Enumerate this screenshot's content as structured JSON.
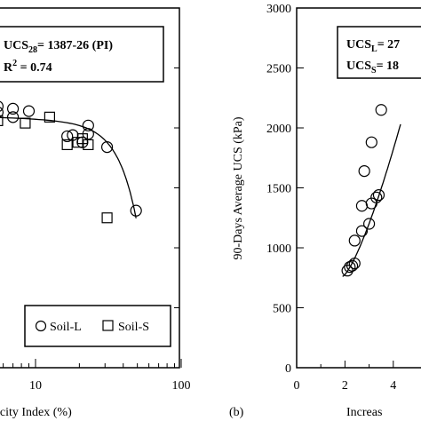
{
  "chart_data": [
    {
      "type": "scatter",
      "panel": "a",
      "x_scale": "log",
      "xlim": [
        1,
        100
      ],
      "ylim": [
        0,
        3000
      ],
      "x_ticks": [
        "10",
        "100"
      ],
      "xlabel": "icity Index (%)",
      "annotation": {
        "line1_prefix": "UCS",
        "line1_sub": "28",
        "line1_rest": "= 1387-26 (PI)",
        "line2_prefix": "R",
        "line2_sup": "2",
        "line2_rest": " = 0.74"
      },
      "legend": {
        "position": "bottom-right",
        "entries": [
          "Soil-L",
          "Soil-S"
        ]
      },
      "series": [
        {
          "name": "Soil-L",
          "marker": "circle",
          "points": [
            [
              5.5,
              2180
            ],
            [
              5.5,
              2130
            ],
            [
              7.0,
              2160
            ],
            [
              7.0,
              2090
            ],
            [
              9.0,
              2140
            ],
            [
              16.5,
              1930
            ],
            [
              18.0,
              1940
            ],
            [
              21.0,
              1880
            ],
            [
              23.0,
              2020
            ],
            [
              23.0,
              1950
            ],
            [
              31.0,
              1840
            ],
            [
              49.0,
              1310
            ]
          ]
        },
        {
          "name": "Soil-S",
          "marker": "square",
          "points": [
            [
              5.5,
              2060
            ],
            [
              8.5,
              2040
            ],
            [
              12.5,
              2090
            ],
            [
              16.5,
              1860
            ],
            [
              19.5,
              1880
            ],
            [
              21.0,
              1910
            ],
            [
              23.0,
              1860
            ],
            [
              31.0,
              1250
            ]
          ]
        }
      ],
      "fit_curve": {
        "formula": "UCS = 1387 - 26 PI",
        "x_range": [
          5.5,
          49
        ]
      }
    },
    {
      "type": "scatter",
      "panel": "b",
      "panel_label": "(b)",
      "ylabel": "90-Days Average UCS (kPa)",
      "xlabel": "Increas",
      "xlim": [
        0,
        4.5
      ],
      "ylim": [
        0,
        3000
      ],
      "x_ticks": [
        "0",
        "2",
        "4"
      ],
      "y_ticks": [
        "0",
        "500",
        "1000",
        "1500",
        "2000",
        "2500",
        "3000"
      ],
      "annotation": {
        "line1_prefix": "UCS",
        "line1_sub": "L",
        "line1_rest": "= 27",
        "line2_prefix": "UCS",
        "line2_sub": "S",
        "line2_rest": "= 18"
      },
      "series": [
        {
          "name": "",
          "marker": "circle",
          "points": [
            [
              2.1,
              810
            ],
            [
              2.2,
              840
            ],
            [
              2.3,
              850
            ],
            [
              2.4,
              870
            ],
            [
              2.4,
              1060
            ],
            [
              2.7,
              1140
            ],
            [
              2.7,
              1350
            ],
            [
              2.8,
              1640
            ],
            [
              3.0,
              1200
            ],
            [
              3.1,
              1370
            ],
            [
              3.1,
              1880
            ],
            [
              3.3,
              1420
            ],
            [
              3.4,
              1440
            ],
            [
              3.5,
              2150
            ]
          ]
        }
      ],
      "fit_curve": {
        "x_range": [
          1.9,
          4.3
        ],
        "y_range": [
          760,
          2030
        ]
      }
    }
  ]
}
